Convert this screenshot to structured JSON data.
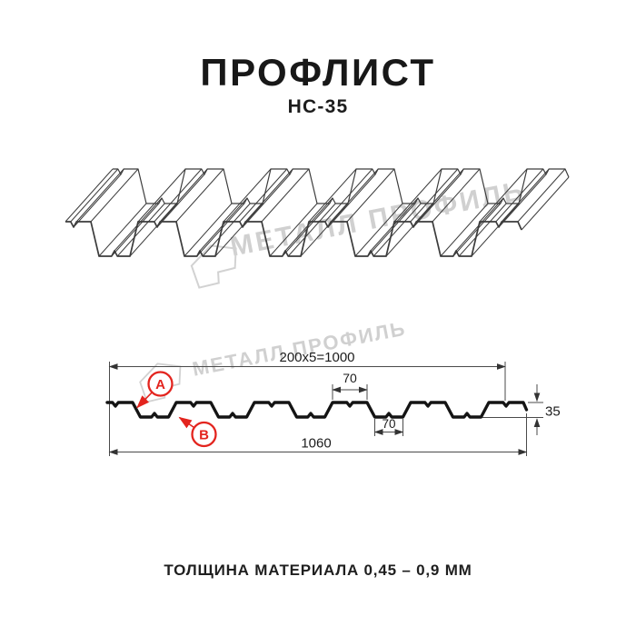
{
  "page": {
    "title": "ПРОФЛИСТ",
    "subtitle": "НС-35",
    "caption": "ТОЛЩИНА МАТЕРИАЛА 0,45 – 0,9 ММ"
  },
  "watermark": {
    "brand": "МЕТАЛЛ ПРОФИЛЬ"
  },
  "diagram": {
    "dimensions": {
      "working_width": "200x5=1000",
      "overall_width": "1060",
      "top_flange": "70",
      "bottom_flange": "70",
      "height": "35"
    },
    "markers": {
      "side_a": "A",
      "side_b": "B"
    },
    "values_mm": {
      "module_mm": 200,
      "modules_count": 5,
      "working_width_mm": 1000,
      "overall_width_mm": 1060,
      "height_mm": 35,
      "flange_mm": 70,
      "thickness_min_mm": "0,45",
      "thickness_max_mm": "0,9"
    },
    "colors": {
      "line_dark": "#1a1a1a",
      "sketch_line": "#3c3c3c",
      "dim_line": "#4a4a4a",
      "accent_red": "#e3241e",
      "watermark_gray": "#d0d0d0"
    }
  }
}
